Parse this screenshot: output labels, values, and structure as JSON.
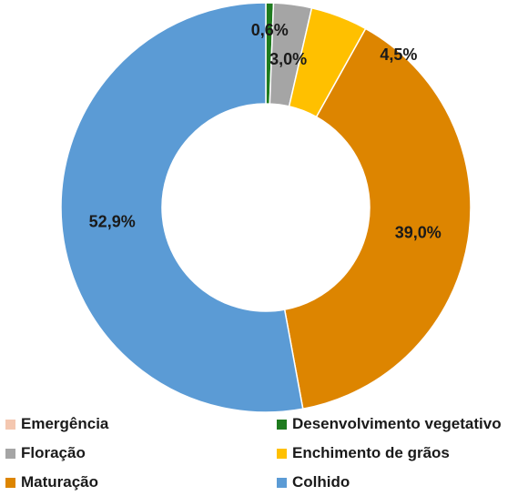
{
  "chart_data": {
    "type": "pie",
    "subtype": "donut",
    "legend_position": "bottom",
    "categories": [
      "Emergência",
      "Desenvolvimento vegetativo",
      "Floração",
      "Enchimento de grãos",
      "Maturação",
      "Colhido"
    ],
    "values": [
      0.0,
      0.6,
      3.0,
      4.5,
      39.0,
      52.9
    ],
    "value_labels": [
      "",
      "0,6%",
      "3,0%",
      "4,5%",
      "39,0%",
      "52,9%"
    ],
    "colors": [
      "#f4c7b0",
      "#1e7b1e",
      "#a5a5a5",
      "#ffc000",
      "#dd8500",
      "#5b9bd5"
    ]
  }
}
